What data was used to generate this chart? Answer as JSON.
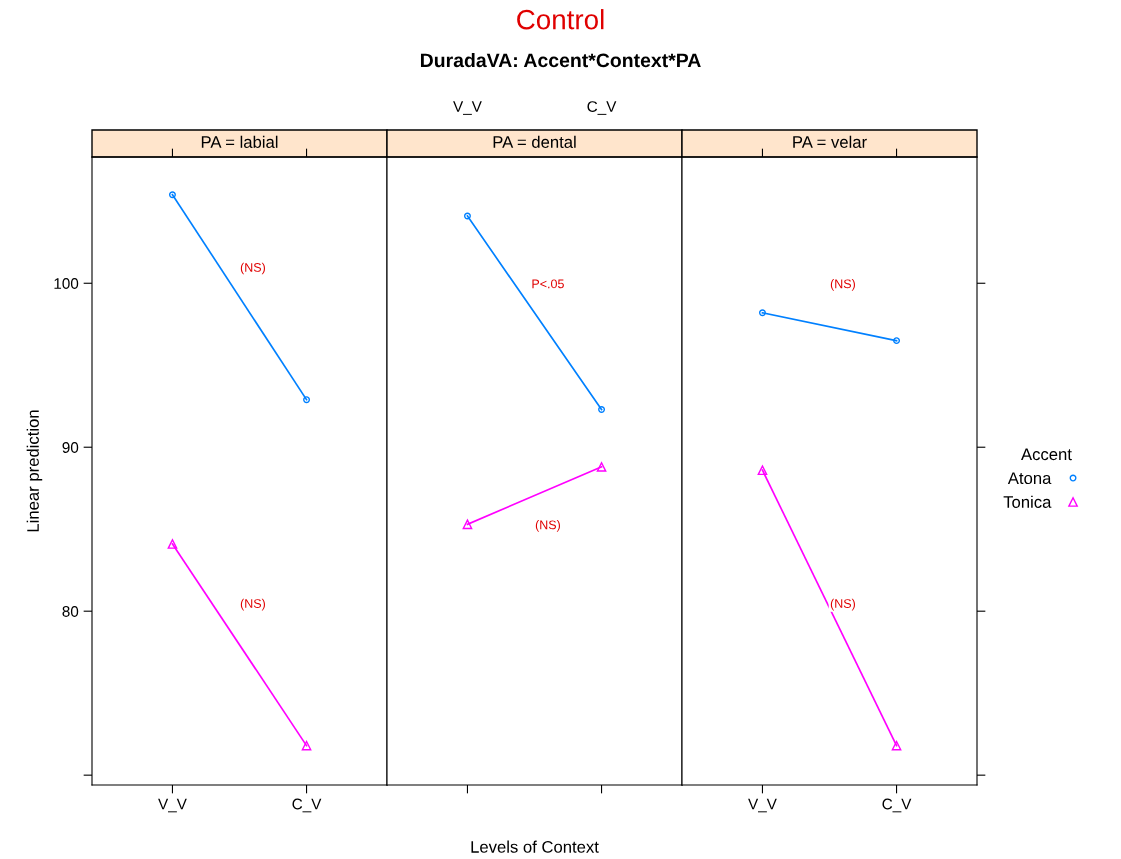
{
  "chart_data": [
    {
      "type": "line",
      "title": "PA = labial",
      "ylabel": "Linear prediction",
      "categories": [
        "V_V",
        "C_V"
      ],
      "ylim": [
        69.4,
        107.7
      ],
      "yticks": [
        {
          "value": 70,
          "label": null
        },
        80,
        90,
        100
      ],
      "annotations": [
        "Control",
        "DuradaVA: Accent*Context*PA",
        {
          "text": "(NS)",
          "y": 100.9
        },
        {
          "text": "(NS)",
          "y": 80.4
        }
      ],
      "series": [
        {
          "color": "#0080ff",
          "marker": "circle",
          "values": [
            105.4,
            92.9
          ]
        },
        {
          "color": "#ff00ff",
          "marker": "triangle",
          "values": [
            84.1,
            71.8
          ]
        }
      ]
    },
    {
      "type": "line",
      "title": "PA = dental",
      "xlabel": "Levels of Context",
      "categories": [
        "V_V",
        "C_V"
      ],
      "ylim": [
        69.4,
        107.7
      ],
      "tick_labels": "x",
      "annotations": [
        {
          "text": "P<.05",
          "y": 99.9
        },
        {
          "text": "(NS)",
          "y": 85.2
        }
      ],
      "series": [
        {
          "color": "#0080ff",
          "marker": "circle",
          "values": [
            104.1,
            92.3
          ]
        },
        {
          "color": "#ff00ff",
          "marker": "triangle",
          "values": [
            85.3,
            88.8
          ]
        }
      ]
    },
    {
      "type": "line",
      "title": "PA = velar",
      "categories": [
        "V_V",
        "C_V"
      ],
      "ylim": [
        69.4,
        107.7
      ],
      "yticks": [
        {
          "value": 70,
          "label": null
        },
        80,
        90,
        100
      ],
      "tick_labels": "x",
      "legend": "right",
      "legend_title": "Accent",
      "annotations": [
        {
          "text": "(NS)",
          "y": 99.9
        },
        {
          "text": "(NS)",
          "y": 80.4
        }
      ],
      "series": [
        {
          "name": "Atona",
          "color": "#0080ff",
          "marker": "circle",
          "values": [
            98.2,
            96.5
          ]
        },
        {
          "name": "Tonica",
          "color": "#ff00ff",
          "marker": "triangle",
          "values": [
            88.6,
            71.8
          ]
        }
      ]
    }
  ]
}
